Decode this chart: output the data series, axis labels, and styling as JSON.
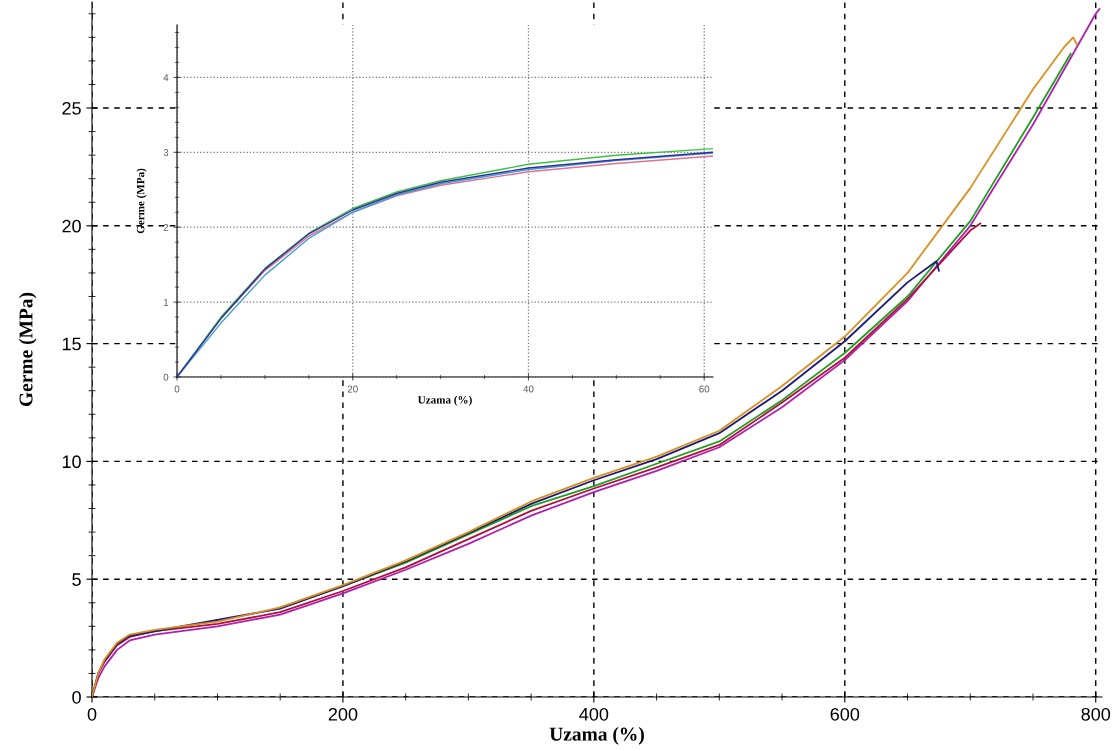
{
  "chart_data": [
    {
      "type": "line",
      "xlabel": "Uzama (%)",
      "ylabel": "Germe (MPa)",
      "xlim": [
        0,
        805
      ],
      "ylim": [
        0,
        29.5
      ],
      "xticks": [
        0,
        200,
        400,
        600,
        800
      ],
      "yticks": [
        0,
        5,
        10,
        15,
        20,
        25
      ],
      "grid": true,
      "series": [
        {
          "color": "#b020b0",
          "x": [
            0,
            5,
            10,
            20,
            30,
            50,
            100,
            150,
            200,
            250,
            300,
            350,
            400,
            450,
            500,
            550,
            600,
            650,
            700,
            750,
            800,
            803
          ],
          "values": [
            0,
            0.8,
            1.3,
            2.0,
            2.4,
            2.65,
            3.0,
            3.5,
            4.4,
            5.4,
            6.5,
            7.7,
            8.7,
            9.6,
            10.6,
            12.3,
            14.3,
            16.8,
            20.0,
            24.3,
            29.0,
            29.2
          ]
        },
        {
          "color": "#b01040",
          "x": [
            0,
            5,
            10,
            20,
            30,
            50,
            100,
            150,
            200,
            250,
            300,
            350,
            400,
            450,
            500,
            550,
            600,
            650,
            700,
            708
          ],
          "values": [
            0,
            1.0,
            1.5,
            2.2,
            2.55,
            2.8,
            3.1,
            3.6,
            4.5,
            5.5,
            6.7,
            7.9,
            8.85,
            9.75,
            10.7,
            12.5,
            14.4,
            16.9,
            19.8,
            20.1
          ]
        },
        {
          "color": "#20a020",
          "x": [
            150,
            200,
            250,
            300,
            350,
            400,
            450,
            500,
            550,
            600,
            650,
            700,
            750,
            780
          ],
          "values": [
            3.8,
            4.7,
            5.7,
            6.9,
            8.1,
            8.95,
            9.9,
            10.85,
            12.6,
            14.6,
            17.0,
            20.2,
            24.6,
            27.3
          ]
        },
        {
          "color": "#1a1a7a",
          "x": [
            0,
            5,
            10,
            20,
            30,
            150,
            200,
            250,
            300,
            350,
            400,
            450,
            500,
            550,
            600,
            650,
            673,
            675
          ],
          "values": [
            0,
            1.0,
            1.55,
            2.25,
            2.6,
            3.75,
            4.7,
            5.75,
            6.95,
            8.2,
            9.2,
            10.1,
            11.2,
            13.0,
            15.1,
            17.6,
            18.5,
            18.1
          ]
        },
        {
          "color": "#d89020",
          "x": [
            0,
            5,
            10,
            20,
            30,
            50,
            100,
            150,
            200,
            250,
            300,
            350,
            400,
            450,
            500,
            550,
            600,
            650,
            700,
            750,
            775,
            782,
            785
          ],
          "values": [
            0,
            1.0,
            1.6,
            2.3,
            2.65,
            2.85,
            3.2,
            3.8,
            4.75,
            5.8,
            7.0,
            8.3,
            9.3,
            10.2,
            11.3,
            13.2,
            15.3,
            18.0,
            21.6,
            25.8,
            27.6,
            28.0,
            27.7
          ]
        }
      ]
    },
    {
      "type": "line",
      "xlabel": "Uzama (%)",
      "ylabel": "Germe (MPa)",
      "xlim": [
        0,
        61
      ],
      "ylim": [
        0,
        4.7
      ],
      "xticks": [
        0,
        20,
        40,
        60
      ],
      "yticks": [
        0,
        1,
        2,
        3,
        4
      ],
      "grid": true,
      "series": [
        {
          "color": "#e07090",
          "x": [
            0,
            5,
            10,
            15,
            20,
            25,
            30,
            40,
            50,
            61
          ],
          "values": [
            0,
            0.78,
            1.42,
            1.88,
            2.2,
            2.42,
            2.56,
            2.74,
            2.85,
            2.95
          ]
        },
        {
          "color": "#40c040",
          "x": [
            0,
            5,
            10,
            15,
            20,
            25,
            30,
            40,
            50,
            61
          ],
          "values": [
            0,
            0.8,
            1.45,
            1.92,
            2.25,
            2.47,
            2.62,
            2.84,
            2.96,
            3.05
          ]
        },
        {
          "color": "#40a0d0",
          "x": [
            0,
            5,
            10,
            15,
            20,
            25,
            30,
            40,
            50,
            61
          ],
          "values": [
            0,
            0.72,
            1.36,
            1.85,
            2.2,
            2.43,
            2.58,
            2.77,
            2.89,
            2.99
          ]
        },
        {
          "color": "#3030a0",
          "x": [
            0,
            5,
            10,
            15,
            20,
            25,
            30,
            40,
            50,
            61
          ],
          "values": [
            0,
            0.78,
            1.44,
            1.91,
            2.23,
            2.45,
            2.6,
            2.79,
            2.9,
            3.0
          ]
        }
      ]
    }
  ]
}
